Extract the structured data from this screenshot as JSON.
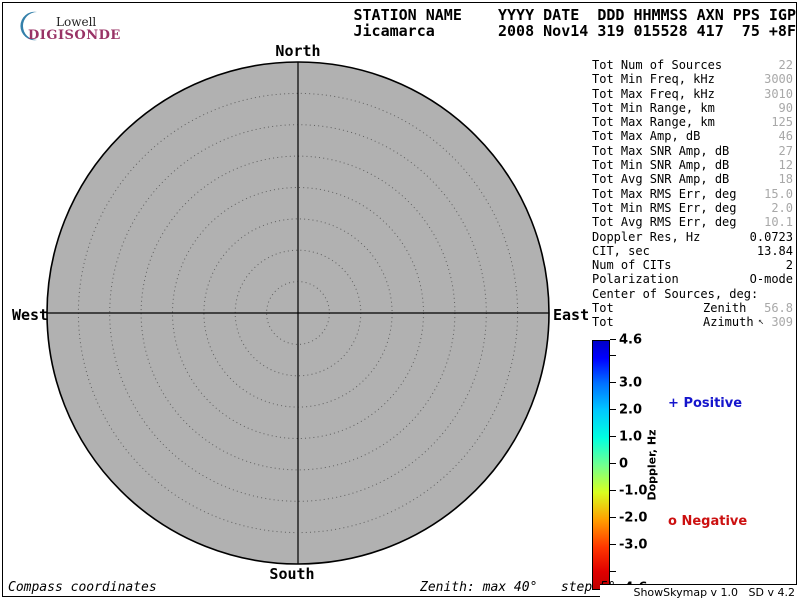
{
  "logo": {
    "top": "Lowell",
    "bottom": "DIGISONDE",
    "brand_color": "#993366",
    "crescent_color": "#3480aa"
  },
  "header": {
    "line1": "STATION NAME    YYYY DATE  DDD HHMMSS AXN PPS IGP",
    "line2": "Jicamarca       2008 Nov14 319 015528 417  75 +8F"
  },
  "skymap": {
    "north": "North",
    "south": "South",
    "west": "West",
    "east": "East",
    "fill_color": "#b1b1b1",
    "footer_mode": "Compass coordinates",
    "footer_zenith": "Zenith: max 40°   step 5°"
  },
  "stats": {
    "rows": [
      {
        "label": "Tot Num of Sources",
        "value": "22",
        "dim": true
      },
      {
        "label": "Tot Min Freq, kHz",
        "value": "3000",
        "dim": true
      },
      {
        "label": "Tot Max Freq, kHz",
        "value": "3010",
        "dim": true
      },
      {
        "label": "Tot Min Range, km",
        "value": "90",
        "dim": true
      },
      {
        "label": "Tot Max Range, km",
        "value": "125",
        "dim": true
      },
      {
        "label": "Tot Max Amp, dB",
        "value": "46",
        "dim": true
      },
      {
        "label": "Tot Max SNR Amp, dB",
        "value": "27",
        "dim": true
      },
      {
        "label": "Tot Min SNR Amp, dB",
        "value": "12",
        "dim": true
      },
      {
        "label": "Tot Avg SNR Amp, dB",
        "value": "18",
        "dim": true
      },
      {
        "label": "Tot Max RMS Err, deg",
        "value": "15.0",
        "dim": true
      },
      {
        "label": "Tot Min RMS Err, deg",
        "value": "2.0",
        "dim": true
      },
      {
        "label": "Tot Avg RMS Err, deg",
        "value": "10.1",
        "dim": true
      },
      {
        "label": "Doppler Res, Hz",
        "value": "0.0723",
        "dim": false
      },
      {
        "label": "CIT, sec",
        "value": "13.84",
        "dim": false
      },
      {
        "label": "Num of CITs",
        "value": "2",
        "dim": false
      },
      {
        "label": "Polarization",
        "value": "O-mode",
        "dim": false
      },
      {
        "label": "Center of Sources, deg:",
        "value": "",
        "dim": false
      },
      {
        "label": "Tot",
        "mid": "Zenith",
        "value": "56.8",
        "dim": true
      },
      {
        "label": "Tot",
        "mid": "Azimuth",
        "arrow": "↖",
        "value": "309",
        "dim": true
      }
    ]
  },
  "colorbar": {
    "title": "Doppler, Hz",
    "max": 4.6,
    "min": -4.6,
    "ticks": [
      {
        "value": 4.6,
        "label": "4.6"
      },
      {
        "value": 4.0,
        "label": ""
      },
      {
        "value": 3.0,
        "label": "3.0"
      },
      {
        "value": 2.0,
        "label": "2.0"
      },
      {
        "value": 1.0,
        "label": "1.0"
      },
      {
        "value": 0,
        "label": "0"
      },
      {
        "value": -1.0,
        "label": "-1.0"
      },
      {
        "value": -2.0,
        "label": "-2.0"
      },
      {
        "value": -3.0,
        "label": "-3.0"
      },
      {
        "value": -4.0,
        "label": ""
      },
      {
        "value": -4.6,
        "label": "-4.6"
      }
    ]
  },
  "legend": {
    "positive_marker": "+",
    "positive_label": "Positive",
    "positive_color": "#1515cc",
    "negative_marker": "o",
    "negative_label": "Negative",
    "negative_color": "#cc1010"
  },
  "footer": {
    "right_version": "ShowSkymap v 1.0   SD v 4.2"
  },
  "chart_data": {
    "type": "polar_skymap",
    "title": "DIGISONDE skymap, compass coordinates",
    "station": "Jicamarca",
    "datetime": "2008 Nov14 319 015528",
    "compass_labels": [
      "North",
      "East",
      "South",
      "West"
    ],
    "zenith_max_deg": 40,
    "zenith_step_deg": 5,
    "ring_zenith_deg": [
      5,
      10,
      15,
      20,
      25,
      30,
      35
    ],
    "points": [],
    "colorbar": {
      "label": "Doppler, Hz",
      "range": [
        -4.6,
        4.6
      ],
      "labeled_ticks": [
        4.6,
        3.0,
        2.0,
        1.0,
        0,
        -1.0,
        -2.0,
        -3.0,
        -4.6
      ],
      "minor_ticks": [
        4.0,
        -4.0
      ],
      "orientation": "vertical",
      "top_color": "blue",
      "bottom_color": "red"
    },
    "legend": [
      {
        "marker": "+",
        "label": "Positive",
        "color": "#1515cc"
      },
      {
        "marker": "o",
        "label": "Negative",
        "color": "#cc1010"
      }
    ]
  }
}
